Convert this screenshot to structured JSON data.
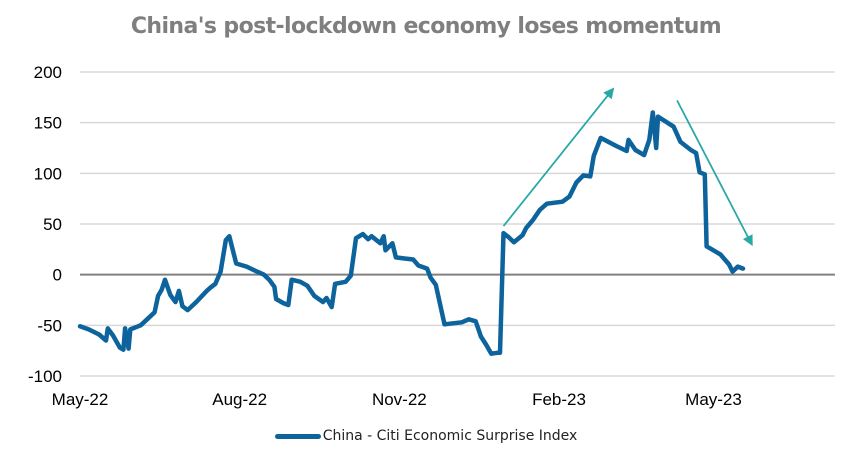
{
  "chart_data": {
    "type": "line",
    "title": "China's post-lockdown economy loses momentum",
    "xlabel": "",
    "ylabel": "",
    "ylim": [
      -100,
      200
    ],
    "yticks": [
      200,
      150,
      100,
      50,
      0,
      -50,
      -100
    ],
    "ytick_labels": [
      "200",
      "150",
      "100",
      "50",
      "0",
      "-50",
      "-100"
    ],
    "x_start": "2022-05-01",
    "x_end": "2023-07-10",
    "xticks": [
      {
        "label": "May-22",
        "date": "2022-05-01"
      },
      {
        "label": "Aug-22",
        "date": "2022-08-01"
      },
      {
        "label": "Nov-22",
        "date": "2022-11-01"
      },
      {
        "label": "Feb-23",
        "date": "2023-02-01"
      },
      {
        "label": "May-23",
        "date": "2023-05-01"
      }
    ],
    "grid": true,
    "zero_line": true,
    "legend_position": "bottom-center",
    "series": [
      {
        "name": "China - Citi Economic Surprise Index",
        "color": "#0d639c",
        "points": [
          [
            "2022-05-01",
            -51
          ],
          [
            "2022-05-06",
            -54
          ],
          [
            "2022-05-12",
            -59
          ],
          [
            "2022-05-16",
            -65
          ],
          [
            "2022-05-17",
            -53
          ],
          [
            "2022-05-20",
            -60
          ],
          [
            "2022-05-24",
            -72
          ],
          [
            "2022-05-26",
            -74
          ],
          [
            "2022-05-27",
            -53
          ],
          [
            "2022-05-29",
            -73
          ],
          [
            "2022-05-30",
            -54
          ],
          [
            "2022-06-05",
            -50
          ],
          [
            "2022-06-10",
            -42
          ],
          [
            "2022-06-13",
            -37
          ],
          [
            "2022-06-15",
            -21
          ],
          [
            "2022-06-17",
            -15
          ],
          [
            "2022-06-19",
            -5
          ],
          [
            "2022-06-22",
            -20
          ],
          [
            "2022-06-25",
            -27
          ],
          [
            "2022-06-27",
            -16
          ],
          [
            "2022-06-29",
            -31
          ],
          [
            "2022-07-02",
            -35
          ],
          [
            "2022-07-07",
            -27
          ],
          [
            "2022-07-13",
            -16
          ],
          [
            "2022-07-15",
            -13
          ],
          [
            "2022-07-18",
            -9
          ],
          [
            "2022-07-21",
            3
          ],
          [
            "2022-07-24",
            34
          ],
          [
            "2022-07-26",
            38
          ],
          [
            "2022-07-30",
            11
          ],
          [
            "2022-08-05",
            8
          ],
          [
            "2022-08-11",
            3
          ],
          [
            "2022-08-15",
            0
          ],
          [
            "2022-08-18",
            -5
          ],
          [
            "2022-08-21",
            -12
          ],
          [
            "2022-08-22",
            -24
          ],
          [
            "2022-08-26",
            -28
          ],
          [
            "2022-08-29",
            -30
          ],
          [
            "2022-08-31",
            -5
          ],
          [
            "2022-09-05",
            -7
          ],
          [
            "2022-09-09",
            -11
          ],
          [
            "2022-09-13",
            -21
          ],
          [
            "2022-09-18",
            -27
          ],
          [
            "2022-09-20",
            -23
          ],
          [
            "2022-09-23",
            -32
          ],
          [
            "2022-09-25",
            -9
          ],
          [
            "2022-10-01",
            -7
          ],
          [
            "2022-10-04",
            -1
          ],
          [
            "2022-10-07",
            36
          ],
          [
            "2022-10-11",
            40
          ],
          [
            "2022-10-14",
            35
          ],
          [
            "2022-10-16",
            38
          ],
          [
            "2022-10-21",
            31
          ],
          [
            "2022-10-23",
            38
          ],
          [
            "2022-10-24",
            24
          ],
          [
            "2022-10-28",
            31
          ],
          [
            "2022-10-30",
            17
          ],
          [
            "2022-11-04",
            16
          ],
          [
            "2022-11-09",
            15
          ],
          [
            "2022-11-12",
            9
          ],
          [
            "2022-11-17",
            6
          ],
          [
            "2022-11-19",
            -3
          ],
          [
            "2022-11-22",
            -10
          ],
          [
            "2022-11-27",
            -49
          ],
          [
            "2022-12-07",
            -47
          ],
          [
            "2022-12-11",
            -44
          ],
          [
            "2022-12-15",
            -46
          ],
          [
            "2022-12-18",
            -61
          ],
          [
            "2022-12-21",
            -69
          ],
          [
            "2022-12-24",
            -78
          ],
          [
            "2022-12-28",
            -77
          ],
          [
            "2022-12-29",
            -77
          ],
          [
            "2022-12-31",
            41
          ],
          [
            "2023-01-03",
            37
          ],
          [
            "2023-01-06",
            32
          ],
          [
            "2023-01-11",
            39
          ],
          [
            "2023-01-13",
            46
          ],
          [
            "2023-01-17",
            54
          ],
          [
            "2023-01-21",
            64
          ],
          [
            "2023-01-25",
            70
          ],
          [
            "2023-02-03",
            72
          ],
          [
            "2023-02-07",
            77
          ],
          [
            "2023-02-11",
            91
          ],
          [
            "2023-02-15",
            98
          ],
          [
            "2023-02-19",
            97
          ],
          [
            "2023-02-21",
            117
          ],
          [
            "2023-02-25",
            135
          ],
          [
            "2023-03-06",
            127
          ],
          [
            "2023-03-12",
            122
          ],
          [
            "2023-03-13",
            133
          ],
          [
            "2023-03-17",
            123
          ],
          [
            "2023-03-22",
            118
          ],
          [
            "2023-03-25",
            133
          ],
          [
            "2023-03-27",
            160
          ],
          [
            "2023-03-29",
            125
          ],
          [
            "2023-03-30",
            156
          ],
          [
            "2023-04-08",
            146
          ],
          [
            "2023-04-12",
            131
          ],
          [
            "2023-04-18",
            123
          ],
          [
            "2023-04-21",
            120
          ],
          [
            "2023-04-23",
            101
          ],
          [
            "2023-04-26",
            99
          ],
          [
            "2023-04-27",
            28
          ],
          [
            "2023-05-05",
            20
          ],
          [
            "2023-05-10",
            10
          ],
          [
            "2023-05-12",
            3
          ],
          [
            "2023-05-15",
            8
          ],
          [
            "2023-05-18",
            6
          ]
        ]
      }
    ],
    "annotations": [
      {
        "type": "arrow",
        "label": "up-trend-arrow",
        "from": [
          "2022-12-31",
          48
        ],
        "to": [
          "2023-03-04",
          183
        ],
        "color": "#2aa8a8"
      },
      {
        "type": "arrow",
        "label": "down-trend-arrow",
        "from": [
          "2023-04-10",
          172
        ],
        "to": [
          "2023-05-23",
          30
        ],
        "color": "#2aa8a8"
      }
    ]
  },
  "legend": {
    "label": "China - Citi Economic Surprise Index"
  }
}
